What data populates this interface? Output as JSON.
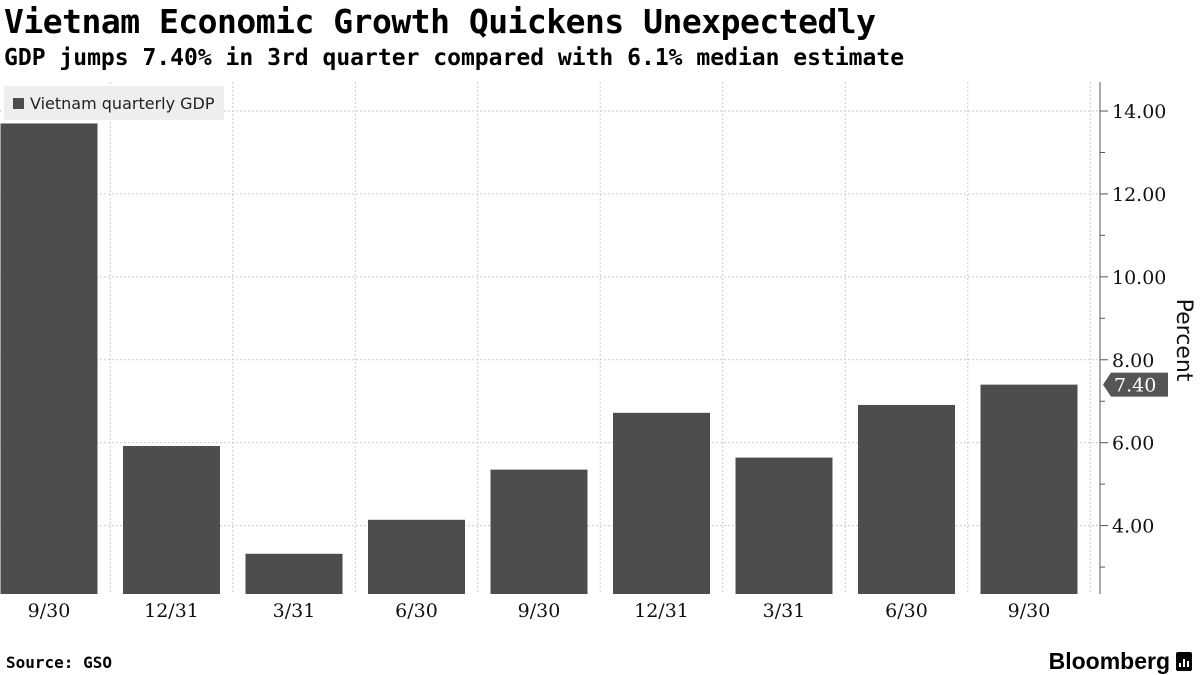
{
  "title": "Vietnam Economic Growth Quickens Unexpectedly",
  "subtitle": "GDP jumps 7.40% in 3rd quarter compared with 6.1% median estimate",
  "legend": {
    "label": "Vietnam quarterly GDP"
  },
  "source": "Source: GSO",
  "brand": "Bloomberg",
  "colors": {
    "bar": "#4d4d4d",
    "grid": "#cccccc",
    "axis": "#555555",
    "callout": "#555555"
  },
  "chart_data": {
    "type": "bar",
    "categories": [
      "9/30",
      "12/31",
      "3/31",
      "6/30",
      "9/30",
      "12/31",
      "3/31",
      "6/30",
      "9/30"
    ],
    "series": [
      {
        "name": "Vietnam quarterly GDP",
        "values": [
          13.7,
          5.92,
          3.32,
          4.14,
          5.35,
          6.72,
          5.64,
          6.91,
          7.4
        ]
      }
    ],
    "ylabel": "Percent",
    "ylim": [
      2.35,
      14.7
    ],
    "yticks": [
      4,
      6,
      8,
      10,
      12,
      14
    ],
    "ytick_labels": [
      "4.00",
      "6.00",
      "8.00",
      "10.00",
      "12.00",
      "14.00"
    ],
    "y_axis_side": "right",
    "grid": true,
    "legend_position": "top-left",
    "callout": {
      "label": "7.40",
      "value": 7.4
    }
  }
}
